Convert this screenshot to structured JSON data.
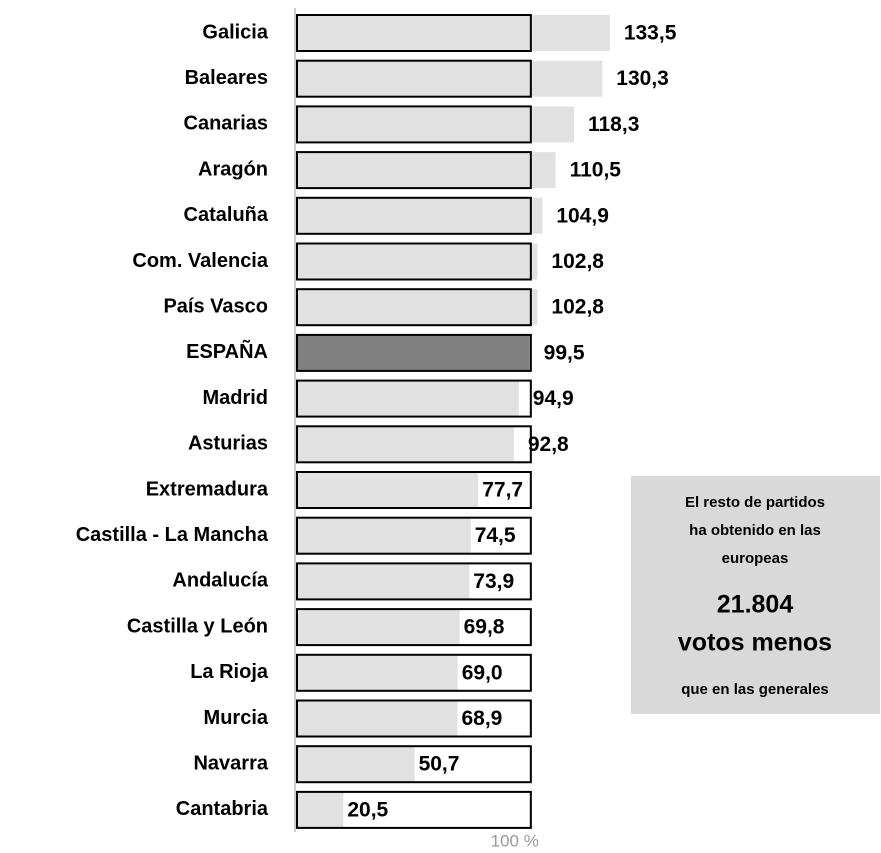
{
  "chart_data": {
    "type": "bar",
    "orientation": "horizontal",
    "categories": [
      "Galicia",
      "Baleares",
      "Canarias",
      "Aragón",
      "Cataluña",
      "Com. Valencia",
      "País Vasco",
      "ESPAÑA",
      "Madrid",
      "Asturias",
      "Extremadura",
      "Castilla - La Mancha",
      "Andalucía",
      "Castilla y León",
      "La Rioja",
      "Murcia",
      "Navarra",
      "Cantabria"
    ],
    "values": [
      133.5,
      130.3,
      118.3,
      110.5,
      104.9,
      102.8,
      102.8,
      99.5,
      94.9,
      92.8,
      77.7,
      74.5,
      73.9,
      69.8,
      69.0,
      68.9,
      50.7,
      20.5
    ],
    "value_labels": [
      "133,5",
      "130,3",
      "118,3",
      "110,5",
      "104,9",
      "102,8",
      "102,8",
      "99,5",
      "94,9",
      "92,8",
      "77,7",
      "74,5",
      "73,9",
      "69,8",
      "69,0",
      "68,9",
      "50,7",
      "20,5"
    ],
    "colors": [
      "#e1e1e1",
      "#e1e1e1",
      "#e1e1e1",
      "#e1e1e1",
      "#e1e1e1",
      "#e1e1e1",
      "#e1e1e1",
      "#808080",
      "#e1e1e1",
      "#e1e1e1",
      "#e1e1e1",
      "#e1e1e1",
      "#e1e1e1",
      "#e1e1e1",
      "#e1e1e1",
      "#e1e1e1",
      "#e1e1e1",
      "#e1e1e1"
    ],
    "xlim": [
      0,
      240
    ],
    "xticks": [
      {
        "value": 100,
        "label": "100 %"
      }
    ],
    "annotation": {
      "intro": [
        "El resto de partidos",
        "ha obtenido en las",
        "europeas"
      ],
      "highlight": [
        "21.804",
        "votos menos"
      ],
      "outro": "que en las generales"
    }
  }
}
